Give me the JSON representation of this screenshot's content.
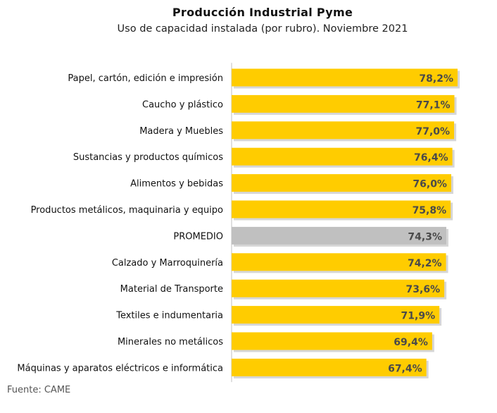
{
  "title": "Producción Industrial Pyme",
  "subtitle": "Uso de capacidad instalada (por rubro). Noviembre 2021",
  "source": "Fuente: CAME",
  "chart_data": {
    "type": "bar",
    "orientation": "horizontal",
    "title": "Producción Industrial Pyme",
    "subtitle": "Uso de capacidad instalada (por rubro). Noviembre 2021",
    "categories": [
      "Papel, cartón, edición e impresión",
      "Caucho y plástico",
      "Madera y Muebles",
      "Sustancias y productos químicos",
      "Alimentos y bebidas",
      "Productos metálicos, maquinaria y equipo",
      "PROMEDIO",
      "Calzado y Marroquinería",
      "Material de Transporte",
      "Textiles e indumentaria",
      "Minerales no metálicos",
      "Máquinas y aparatos eléctricos e informática"
    ],
    "values": [
      78.2,
      77.1,
      77.0,
      76.4,
      76.0,
      75.8,
      74.3,
      74.2,
      73.6,
      71.9,
      69.4,
      67.4
    ],
    "value_labels": [
      "78,2%",
      "77,1%",
      "77,0%",
      "76,4%",
      "76,0%",
      "75,8%",
      "74,3%",
      "74,2%",
      "73,6%",
      "71,9%",
      "69,4%",
      "67,4%"
    ],
    "highlight_category": "PROMEDIO",
    "colors": {
      "bar": "#FFCC00",
      "highlight": "#C0C0C0",
      "axis": "#BFBFBF"
    },
    "grid": false,
    "legend": "none"
  }
}
